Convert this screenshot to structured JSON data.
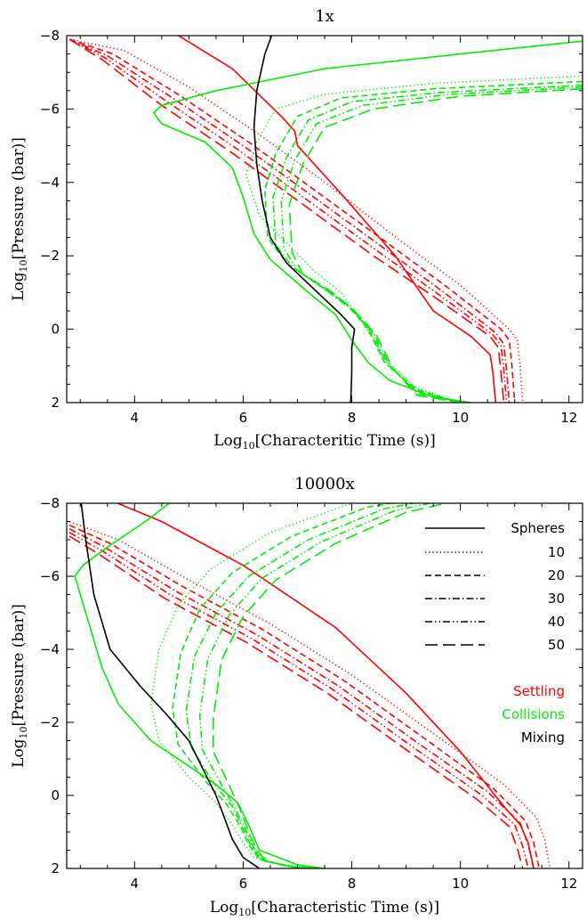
{
  "chart_data": [
    {
      "type": "line",
      "title": "1x",
      "xlabel": "Log10[Characteritic Time (s)]",
      "ylabel": "Log10[Pressure (bar)]",
      "xlim": [
        2.75,
        12.25
      ],
      "ylim": [
        2,
        -8
      ],
      "xticks": [
        4,
        6,
        8,
        10,
        12
      ],
      "yticks": [
        -8,
        -6,
        -4,
        -2,
        0,
        2
      ],
      "series": [
        {
          "group": "Settling",
          "color": "#ff0000",
          "style": "solid",
          "x": [
            4.7,
            5.8,
            6.7,
            6.95,
            7.0,
            7.8,
            8.8,
            9.5,
            10.2,
            10.55,
            10.6,
            10.65
          ],
          "y": [
            -8.1,
            -7.1,
            -5.8,
            -5.4,
            -5.0,
            -3.7,
            -2.0,
            -0.5,
            0.2,
            0.7,
            1.2,
            2.0
          ]
        },
        {
          "group": "Settling",
          "color": "#ff0000",
          "style": "dot",
          "x": [
            2.8,
            3.8,
            5.0,
            6.3,
            7.6,
            8.9,
            10.0,
            10.9,
            11.05,
            11.1,
            11.15
          ],
          "y": [
            -7.9,
            -7.6,
            -6.6,
            -5.3,
            -3.9,
            -2.4,
            -1.2,
            0.0,
            0.3,
            1.0,
            2.0
          ]
        },
        {
          "group": "Settling",
          "color": "#ff0000",
          "style": "dash",
          "x": [
            2.8,
            3.6,
            4.8,
            6.1,
            7.4,
            8.7,
            9.8,
            10.75,
            10.9,
            10.95,
            11.0
          ],
          "y": [
            -7.9,
            -7.5,
            -6.4,
            -5.1,
            -3.7,
            -2.3,
            -1.1,
            0.0,
            0.3,
            1.0,
            2.0
          ]
        },
        {
          "group": "Settling",
          "color": "#ff0000",
          "style": "dashdot",
          "x": [
            2.8,
            3.5,
            4.7,
            6.0,
            7.3,
            8.6,
            9.7,
            10.65,
            10.8,
            10.85,
            10.9
          ],
          "y": [
            -7.9,
            -7.45,
            -6.3,
            -5.0,
            -3.6,
            -2.2,
            -1.0,
            0.1,
            0.4,
            1.1,
            2.0
          ]
        },
        {
          "group": "Settling",
          "color": "#ff0000",
          "style": "dashdotdot",
          "x": [
            2.8,
            3.45,
            4.6,
            5.9,
            7.2,
            8.5,
            9.6,
            10.6,
            10.75,
            10.8,
            10.85
          ],
          "y": [
            -7.9,
            -7.4,
            -6.2,
            -4.9,
            -3.5,
            -2.1,
            -0.95,
            0.15,
            0.45,
            1.1,
            2.0
          ]
        },
        {
          "group": "Settling",
          "color": "#ff0000",
          "style": "longdash",
          "x": [
            2.8,
            3.4,
            4.5,
            5.8,
            7.1,
            8.4,
            9.5,
            10.55,
            10.7,
            10.75,
            10.8
          ],
          "y": [
            -7.9,
            -7.35,
            -6.1,
            -4.8,
            -3.4,
            -2.0,
            -0.9,
            0.2,
            0.5,
            1.2,
            2.0
          ]
        },
        {
          "group": "Collisions",
          "color": "#00ee00",
          "style": "solid",
          "x": [
            12.25,
            10.0,
            7.5,
            5.5,
            4.5,
            4.35,
            4.5,
            5.3,
            5.8,
            6.0,
            6.2,
            6.5,
            7.2,
            7.7,
            8.0,
            8.3,
            8.7,
            9.5,
            10.2
          ],
          "y": [
            -7.85,
            -7.5,
            -7.1,
            -6.5,
            -6.1,
            -5.9,
            -5.6,
            -5.1,
            -4.4,
            -3.6,
            -2.6,
            -1.9,
            -1.0,
            -0.4,
            0.3,
            0.9,
            1.4,
            1.85,
            2.0
          ]
        },
        {
          "group": "Collisions",
          "color": "#00ee00",
          "style": "dot",
          "x": [
            12.25,
            9.5,
            7.5,
            6.6,
            6.25,
            6.05,
            6.3,
            6.9,
            7.3,
            7.8,
            8.2,
            8.6,
            9.2,
            10.0
          ],
          "y": [
            -6.9,
            -6.7,
            -6.4,
            -6.0,
            -5.1,
            -4.2,
            -3.1,
            -2.2,
            -1.6,
            -1.0,
            -0.2,
            0.8,
            1.6,
            2.0
          ]
        },
        {
          "group": "Collisions",
          "color": "#00ee00",
          "style": "dash",
          "x": [
            12.25,
            9.5,
            7.8,
            7.0,
            6.6,
            6.4,
            6.45,
            6.8,
            7.3,
            7.9,
            8.3,
            8.6,
            9.2,
            10.0
          ],
          "y": [
            -6.75,
            -6.55,
            -6.3,
            -5.8,
            -4.8,
            -3.8,
            -2.5,
            -1.8,
            -1.3,
            -0.7,
            0.0,
            0.9,
            1.65,
            2.0
          ]
        },
        {
          "group": "Collisions",
          "color": "#00ee00",
          "style": "dashdot",
          "x": [
            12.25,
            9.6,
            8.0,
            7.2,
            6.8,
            6.55,
            6.6,
            6.9,
            7.4,
            7.95,
            8.35,
            8.65,
            9.2,
            10.0
          ],
          "y": [
            -6.65,
            -6.45,
            -6.2,
            -5.7,
            -4.7,
            -3.6,
            -2.3,
            -1.7,
            -1.2,
            -0.6,
            0.05,
            0.95,
            1.7,
            2.0
          ]
        },
        {
          "group": "Collisions",
          "color": "#00ee00",
          "style": "dashdotdot",
          "x": [
            12.25,
            9.8,
            8.2,
            7.35,
            6.95,
            6.7,
            6.75,
            7.0,
            7.5,
            8.0,
            8.4,
            8.7,
            9.2,
            10.0
          ],
          "y": [
            -6.6,
            -6.4,
            -6.1,
            -5.6,
            -4.6,
            -3.5,
            -2.2,
            -1.6,
            -1.1,
            -0.55,
            0.1,
            1.0,
            1.75,
            2.0
          ]
        },
        {
          "group": "Collisions",
          "color": "#00ee00",
          "style": "longdash",
          "x": [
            12.25,
            10.0,
            8.4,
            7.5,
            7.1,
            6.85,
            6.9,
            7.1,
            7.6,
            8.05,
            8.45,
            8.75,
            9.2,
            10.0
          ],
          "y": [
            -6.55,
            -6.35,
            -6.0,
            -5.5,
            -4.5,
            -3.4,
            -2.1,
            -1.5,
            -1.05,
            -0.5,
            0.15,
            1.05,
            1.8,
            2.0
          ]
        },
        {
          "group": "Mixing",
          "color": "#000000",
          "style": "solid",
          "x": [
            6.55,
            6.4,
            6.25,
            6.2,
            6.25,
            6.35,
            6.5,
            6.8,
            7.3,
            7.8,
            8.05,
            8.0,
            8.0,
            7.98
          ],
          "y": [
            -8.1,
            -7.5,
            -6.5,
            -5.5,
            -4.5,
            -3.5,
            -2.5,
            -1.8,
            -1.1,
            -0.4,
            0.0,
            0.5,
            1.2,
            2.0
          ]
        }
      ]
    },
    {
      "type": "line",
      "title": "10000x",
      "xlabel": "Log10[Characteristic Time (s)]",
      "ylabel": "Log10[Pressure (bar)]",
      "xlim": [
        2.75,
        12.25
      ],
      "ylim": [
        2,
        -8
      ],
      "xticks": [
        4,
        6,
        8,
        10,
        12
      ],
      "yticks": [
        -8,
        -6,
        -4,
        -2,
        0,
        2
      ],
      "legend": {
        "styles_title": "Spheres",
        "styles": [
          {
            "style": "dot",
            "label": "10"
          },
          {
            "style": "dash",
            "label": "20"
          },
          {
            "style": "dashdot",
            "label": "30"
          },
          {
            "style": "dashdotdot",
            "label": "40"
          },
          {
            "style": "longdash",
            "label": "50"
          }
        ],
        "groups": [
          {
            "label": "Settling",
            "color": "#ff0000"
          },
          {
            "label": "Collisions",
            "color": "#00ee00"
          },
          {
            "label": "Mixing",
            "color": "#000000"
          }
        ]
      },
      "series": [
        {
          "group": "Settling",
          "color": "#ff0000",
          "style": "solid",
          "x": [
            3.2,
            4.5,
            6.0,
            7.7,
            9.0,
            10.0,
            10.8,
            11.1,
            11.25,
            11.35
          ],
          "y": [
            -8.3,
            -7.5,
            -6.3,
            -4.6,
            -2.8,
            -1.2,
            0.3,
            0.8,
            1.3,
            2.0
          ]
        },
        {
          "group": "Settling",
          "color": "#ff0000",
          "style": "dot",
          "x": [
            2.8,
            3.7,
            5.0,
            6.5,
            8.0,
            9.5,
            10.8,
            11.4,
            11.55,
            11.65
          ],
          "y": [
            -7.5,
            -7.0,
            -5.9,
            -4.7,
            -3.3,
            -1.7,
            -0.3,
            0.6,
            1.2,
            2.0
          ]
        },
        {
          "group": "Settling",
          "color": "#ff0000",
          "style": "dash",
          "x": [
            2.8,
            3.55,
            4.85,
            6.35,
            7.85,
            9.35,
            10.6,
            11.2,
            11.35,
            11.45
          ],
          "y": [
            -7.4,
            -6.9,
            -5.75,
            -4.55,
            -3.15,
            -1.55,
            -0.2,
            0.7,
            1.3,
            2.0
          ]
        },
        {
          "group": "Settling",
          "color": "#ff0000",
          "style": "dashdot",
          "x": [
            2.8,
            3.45,
            4.75,
            6.25,
            7.75,
            9.25,
            10.5,
            11.1,
            11.25,
            11.35
          ],
          "y": [
            -7.3,
            -6.8,
            -5.6,
            -4.4,
            -3.0,
            -1.4,
            -0.1,
            0.75,
            1.35,
            2.0
          ]
        },
        {
          "group": "Settling",
          "color": "#ff0000",
          "style": "dashdotdot",
          "x": [
            2.8,
            3.4,
            4.65,
            6.15,
            7.65,
            9.15,
            10.4,
            11.0,
            11.15,
            11.25
          ],
          "y": [
            -7.2,
            -6.7,
            -5.5,
            -4.3,
            -2.9,
            -1.3,
            0.0,
            0.8,
            1.4,
            2.0
          ]
        },
        {
          "group": "Settling",
          "color": "#ff0000",
          "style": "longdash",
          "x": [
            2.8,
            3.35,
            4.55,
            6.05,
            7.55,
            9.05,
            10.3,
            10.9,
            11.05,
            11.15
          ],
          "y": [
            -7.1,
            -6.6,
            -5.4,
            -4.2,
            -2.8,
            -1.2,
            0.1,
            0.85,
            1.45,
            2.0
          ]
        },
        {
          "group": "Collisions",
          "color": "#00ee00",
          "style": "solid",
          "x": [
            4.9,
            4.2,
            3.5,
            3.05,
            2.9,
            3.0,
            3.2,
            3.4,
            3.7,
            4.3,
            5.0,
            5.5,
            5.9,
            6.1,
            6.3,
            7.0,
            7.5
          ],
          "y": [
            -8.3,
            -7.5,
            -6.8,
            -6.3,
            -6.0,
            -5.5,
            -4.5,
            -3.5,
            -2.5,
            -1.5,
            -0.8,
            -0.3,
            0.2,
            0.8,
            1.5,
            1.9,
            2.0
          ]
        },
        {
          "group": "Collisions",
          "color": "#00ee00",
          "style": "dot",
          "x": [
            9.8,
            8.0,
            6.5,
            5.4,
            4.8,
            4.45,
            4.3,
            4.45,
            5.0,
            5.5,
            5.8,
            6.0,
            6.2,
            6.8,
            7.5
          ],
          "y": [
            -8.4,
            -8.0,
            -7.2,
            -6.2,
            -5.2,
            -4.0,
            -2.5,
            -1.5,
            -0.5,
            0.2,
            0.8,
            1.3,
            1.7,
            1.95,
            2.0
          ]
        },
        {
          "group": "Collisions",
          "color": "#00ee00",
          "style": "dash",
          "x": [
            10.0,
            8.3,
            6.9,
            5.8,
            5.2,
            4.85,
            4.7,
            4.8,
            5.3,
            5.7,
            5.95,
            6.1,
            6.3,
            6.9,
            7.5
          ],
          "y": [
            -8.3,
            -7.9,
            -7.1,
            -6.1,
            -5.1,
            -3.9,
            -2.4,
            -1.4,
            -0.4,
            0.25,
            0.85,
            1.35,
            1.75,
            1.95,
            2.0
          ]
        },
        {
          "group": "Collisions",
          "color": "#00ee00",
          "style": "dashdot",
          "x": [
            10.2,
            8.6,
            7.2,
            6.1,
            5.5,
            5.1,
            4.95,
            5.05,
            5.45,
            5.8,
            6.0,
            6.15,
            6.35,
            6.9,
            7.5
          ],
          "y": [
            -8.3,
            -7.85,
            -7.0,
            -6.0,
            -5.0,
            -3.8,
            -2.3,
            -1.3,
            -0.35,
            0.3,
            0.9,
            1.4,
            1.78,
            1.96,
            2.0
          ]
        },
        {
          "group": "Collisions",
          "color": "#00ee00",
          "style": "dashdotdot",
          "x": [
            10.4,
            8.8,
            7.45,
            6.35,
            5.75,
            5.35,
            5.2,
            5.25,
            5.6,
            5.85,
            6.05,
            6.2,
            6.4,
            6.95,
            7.5
          ],
          "y": [
            -8.3,
            -7.8,
            -6.95,
            -5.95,
            -4.95,
            -3.75,
            -2.2,
            -1.25,
            -0.3,
            0.35,
            0.95,
            1.45,
            1.8,
            1.96,
            2.0
          ]
        },
        {
          "group": "Collisions",
          "color": "#00ee00",
          "style": "longdash",
          "x": [
            10.6,
            9.0,
            7.7,
            6.6,
            6.0,
            5.6,
            5.45,
            5.45,
            5.75,
            5.95,
            6.1,
            6.25,
            6.45,
            7.0,
            7.5
          ],
          "y": [
            -8.3,
            -7.75,
            -6.9,
            -5.9,
            -4.9,
            -3.7,
            -2.1,
            -1.2,
            -0.25,
            0.4,
            1.0,
            1.5,
            1.82,
            1.97,
            2.0
          ]
        },
        {
          "group": "Mixing",
          "color": "#000000",
          "style": "solid",
          "x": [
            3.0,
            3.1,
            3.25,
            3.55,
            4.1,
            4.6,
            5.0,
            5.3,
            5.5,
            5.65,
            5.8,
            6.0,
            6.3
          ],
          "y": [
            -8.2,
            -7.0,
            -5.5,
            -4.0,
            -3.0,
            -2.2,
            -1.5,
            -0.6,
            0.0,
            0.6,
            1.2,
            1.7,
            2.0
          ]
        }
      ]
    }
  ]
}
